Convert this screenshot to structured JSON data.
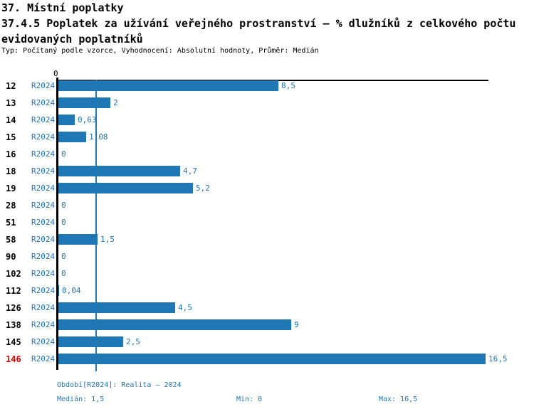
{
  "title": {
    "line1": "37. Místní poplatky",
    "line2": "37.4.5 Poplatek za užívání veřejného prostranství – % dlužníků z celkového počtu",
    "line3": "evidovaných poplatníků",
    "meta": "Typ: Počítaný podle vzorce, Vyhodnocení: Absolutní hodnoty, Průměr: Medián"
  },
  "colors": {
    "primary_blue": "#1f77b4",
    "highlight_red": "#dd0000",
    "axis_black": "#000000",
    "background": "#ffffff"
  },
  "chart_data": {
    "type": "bar",
    "orientation": "horizontal",
    "title": "37.4.5 Poplatek za užívání veřejného prostranství – % dlužníků z celkového počtu evidovaných poplatníků",
    "series_label": "R2024",
    "categories": [
      "12",
      "13",
      "14",
      "15",
      "16",
      "18",
      "19",
      "28",
      "51",
      "58",
      "90",
      "102",
      "112",
      "126",
      "138",
      "145",
      "146"
    ],
    "values": [
      8.5,
      2,
      0.63,
      1.08,
      0,
      4.7,
      5.2,
      0,
      0,
      1.5,
      0,
      0,
      0.04,
      4.5,
      9,
      2.5,
      16.5
    ],
    "value_labels": [
      "8,5",
      "2",
      "0,63",
      "1,08",
      "0",
      "4,7",
      "5,2",
      "0",
      "0",
      "1,5",
      "0",
      "0",
      "0,04",
      "4,5",
      "9",
      "2,5",
      "16,5"
    ],
    "xlim": [
      0,
      16.5
    ],
    "x_axis_ticks": [
      "0"
    ],
    "median_line": 1.5,
    "highlighted_category": "146",
    "grid": false,
    "legend_position": "none"
  },
  "footer": {
    "period_info": "Období[R2024]: Realita – 2024",
    "median": "Medián: 1,5",
    "min": "Min: 0",
    "max": "Max: 16,5"
  }
}
